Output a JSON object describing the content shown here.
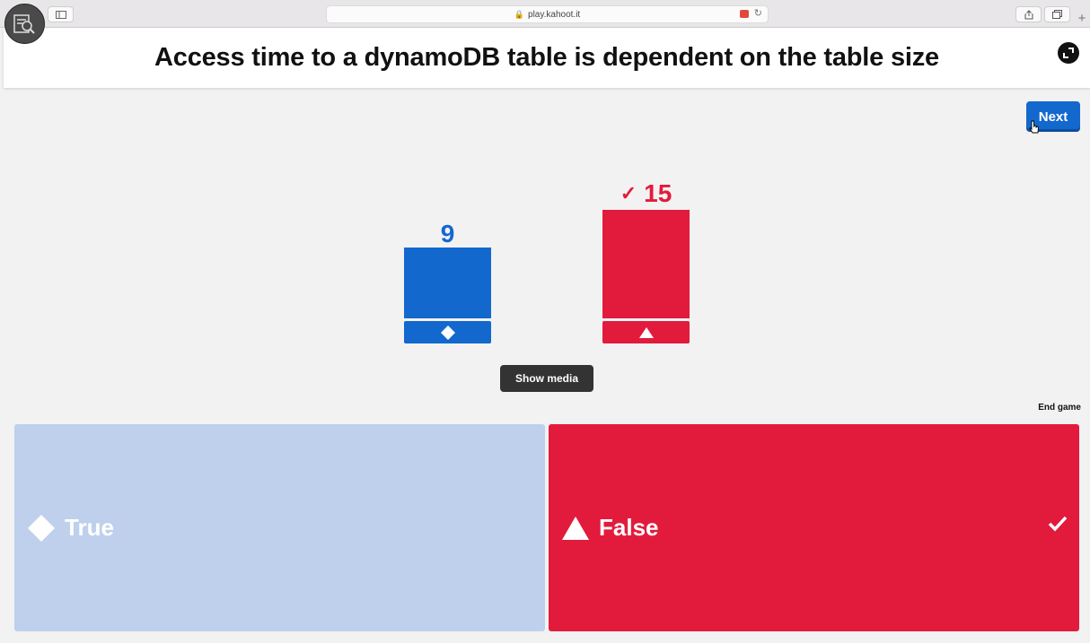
{
  "browser": {
    "url": "play.kahoot.it"
  },
  "question": {
    "text": "Access time to a dynamoDB table is dependent on the table size"
  },
  "controls": {
    "next_label": "Next",
    "show_media_label": "Show media",
    "end_game_label": "End game"
  },
  "results": [
    {
      "shape": "diamond-icon",
      "count": "9",
      "color": "#1368ce",
      "correct": false
    },
    {
      "shape": "triangle-icon",
      "count": "15",
      "color": "#e21b3c",
      "correct": true,
      "correct_mark": "✓"
    }
  ],
  "answers": [
    {
      "label": "True",
      "shape": "diamond-icon",
      "color": "#bfd0ec",
      "correct": false
    },
    {
      "label": "False",
      "shape": "triangle-icon",
      "color": "#e21b3c",
      "correct": true
    }
  ]
}
